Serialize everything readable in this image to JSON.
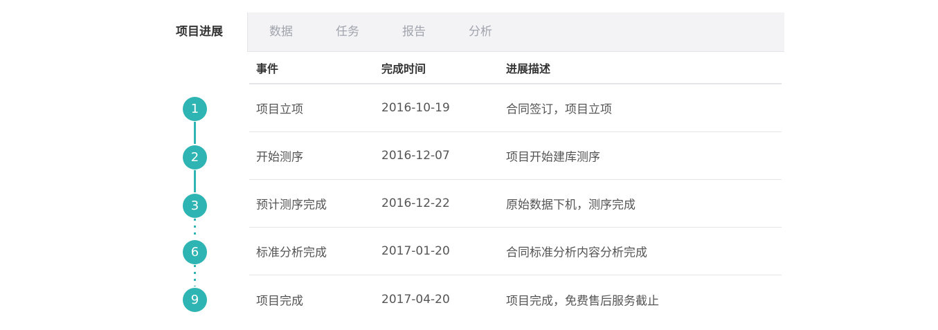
{
  "tabs": [
    {
      "label": "项目进展",
      "active": true
    },
    {
      "label": "数据"
    },
    {
      "label": "任务"
    },
    {
      "label": "报告"
    },
    {
      "label": "分析"
    }
  ],
  "accent_color": "#2fb4b4",
  "table": {
    "headers": [
      "事件",
      "完成时间",
      "进展描述"
    ],
    "rows": [
      {
        "step": "1",
        "event": "项目立项",
        "date": "2016-10-19",
        "desc": "合同签订，项目立项"
      },
      {
        "step": "2",
        "event": "开始测序",
        "date": "2016-12-07",
        "desc": "项目开始建库测序"
      },
      {
        "step": "3",
        "event": "预计测序完成",
        "date": "2016-12-22",
        "desc": "原始数据下机，测序完成"
      },
      {
        "step": "6",
        "event": "标准分析完成",
        "date": "2017-01-20",
        "desc": "合同标准分析内容分析完成"
      },
      {
        "step": "9",
        "event": "项目完成",
        "date": "2017-04-20",
        "desc": "项目完成，免费售后服务截止"
      }
    ],
    "connectors": [
      "solid",
      "solid",
      "dotted",
      "dotted"
    ]
  }
}
